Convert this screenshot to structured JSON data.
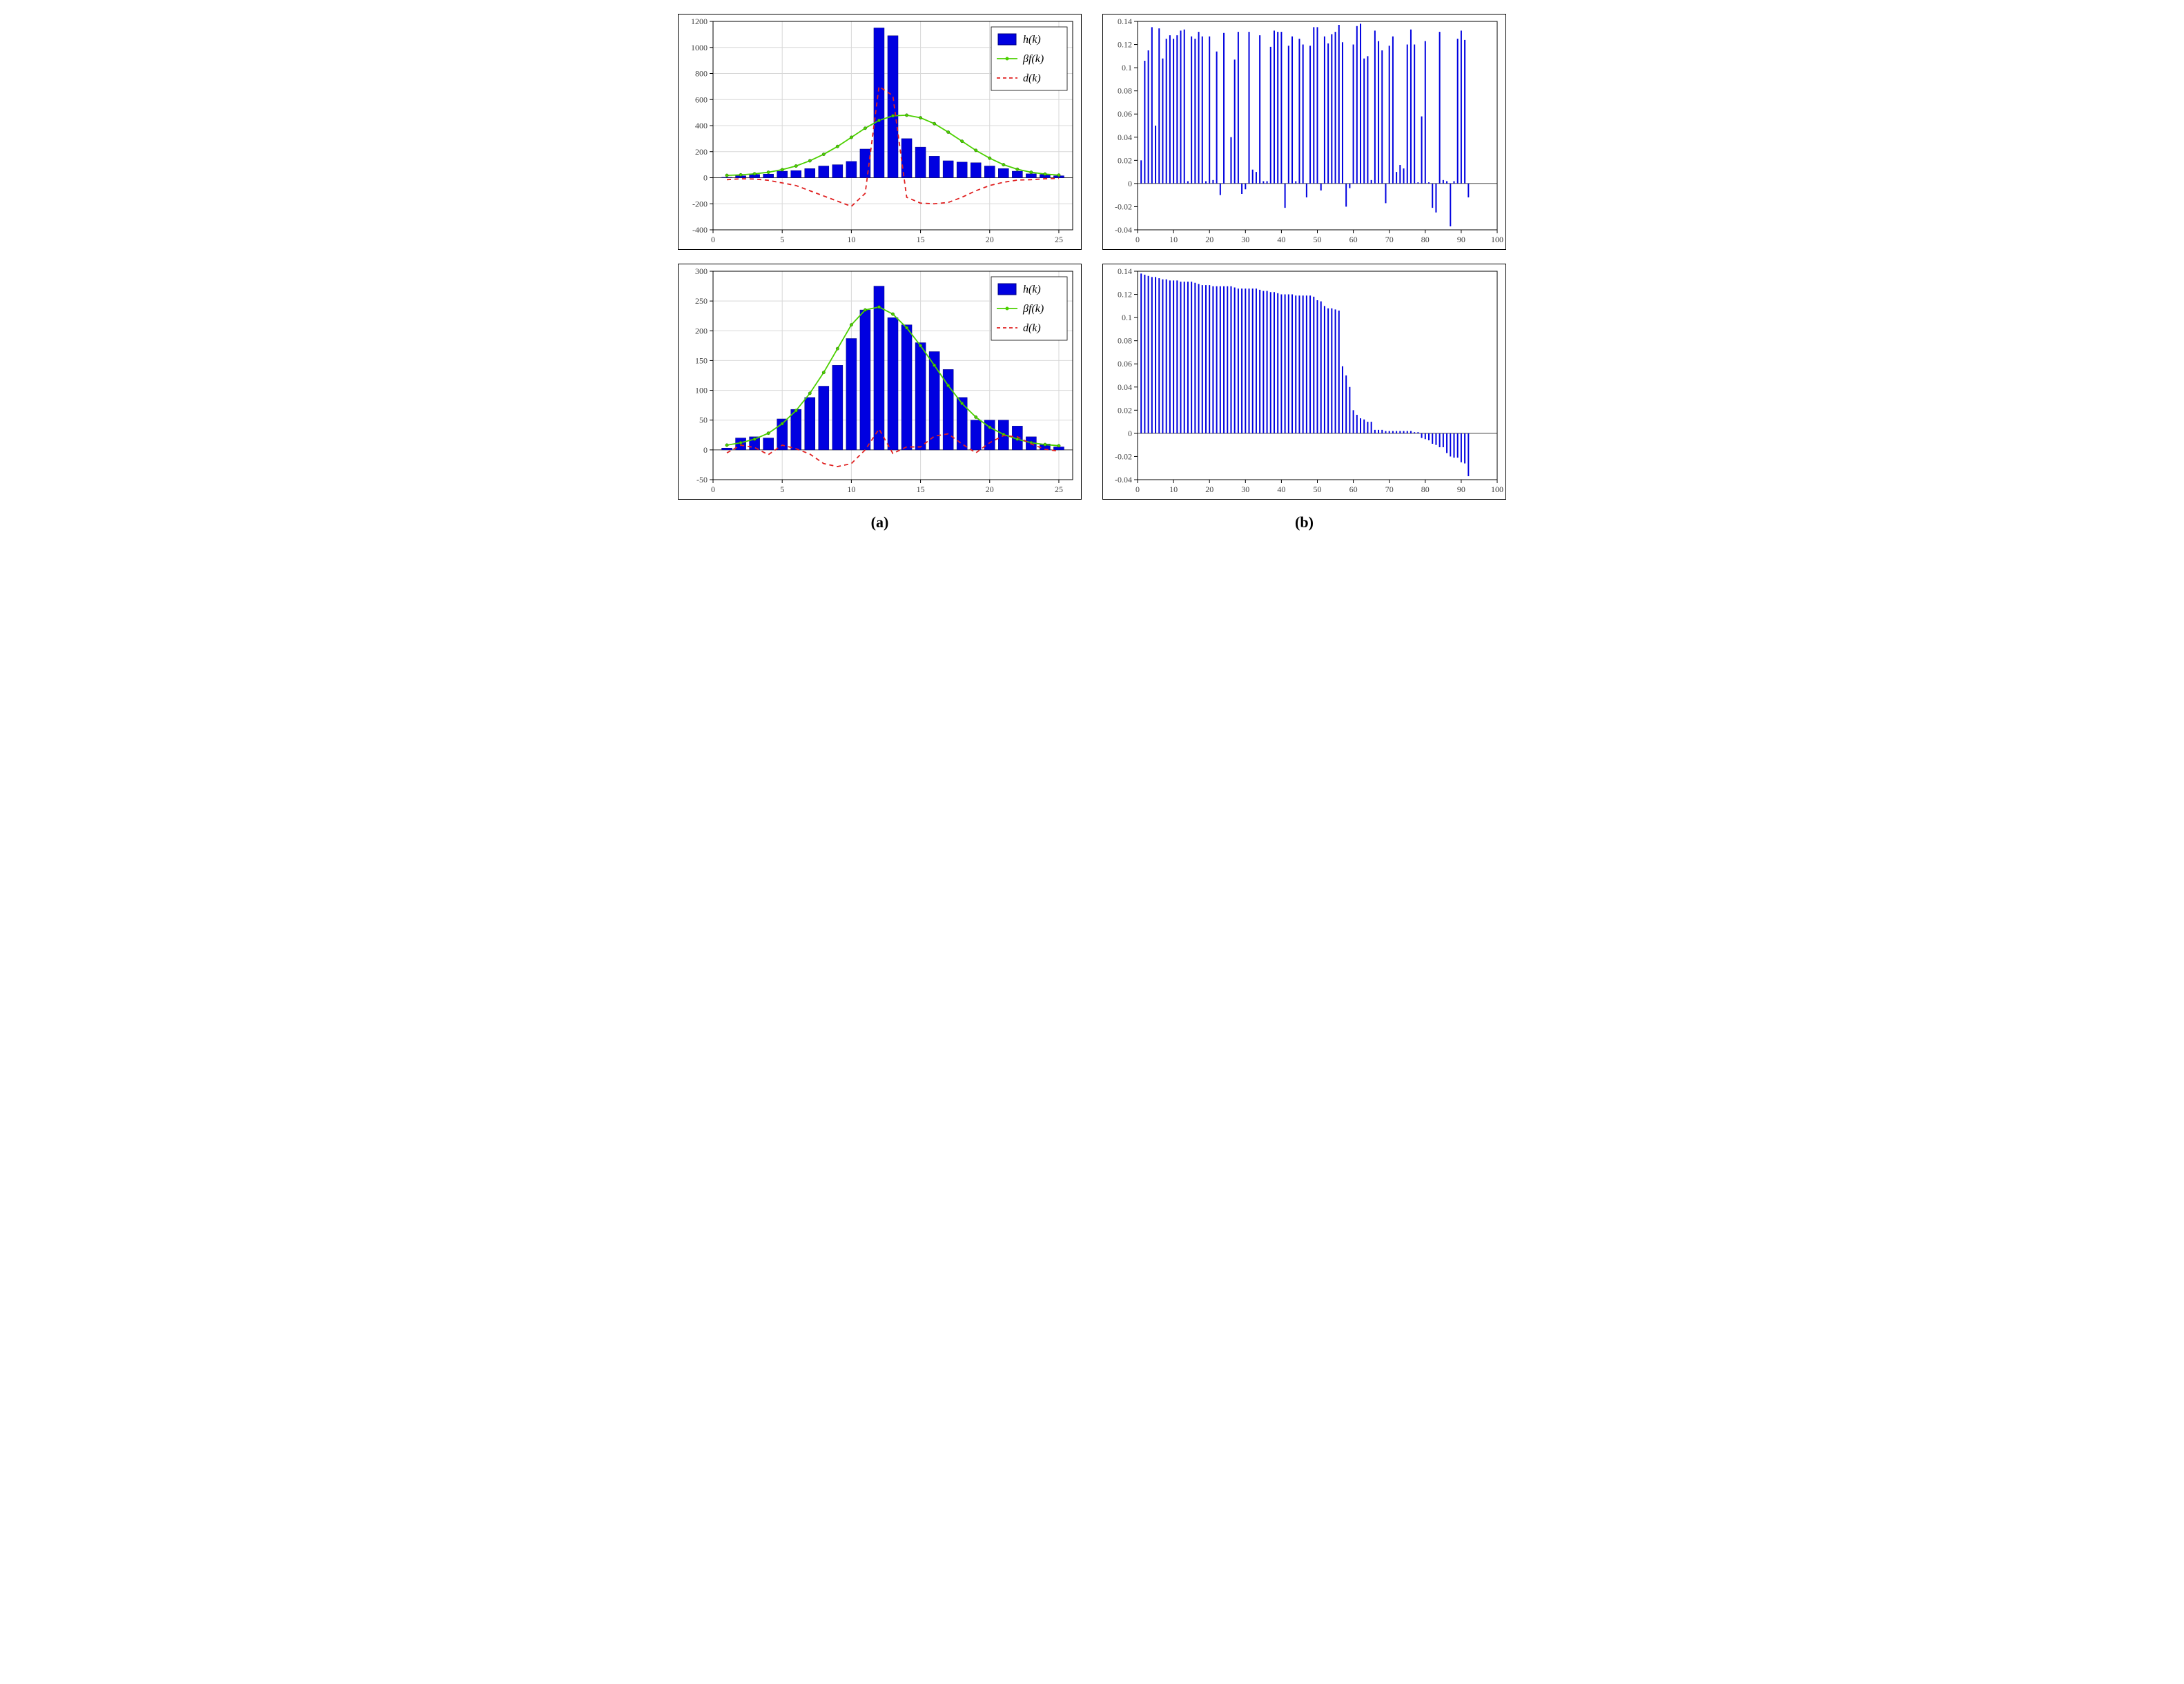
{
  "captions": {
    "a": "(a)",
    "b": "(b)"
  },
  "colors": {
    "bar_fill": "#0000e0",
    "bar_edge": "#000080",
    "line_green": "#4cd000",
    "line_red": "#e02020",
    "grid": "#d8d8d8",
    "axis": "#000000",
    "bg": "#ffffff",
    "tick_text": "#404040"
  },
  "fonts": {
    "tick_size": 12,
    "legend_size": 16,
    "legend_family": "Book Antiqua, Palatino, serif",
    "caption_size": 22
  },
  "panel_a_top": {
    "type": "bar+line",
    "xlim": [
      0,
      26
    ],
    "xticks": [
      0,
      5,
      10,
      15,
      20,
      25
    ],
    "ylim": [
      -400,
      1200
    ],
    "yticks": [
      -400,
      -200,
      0,
      200,
      400,
      600,
      800,
      1000,
      1200
    ],
    "bar_width": 0.75,
    "h": [
      3,
      15,
      25,
      28,
      50,
      55,
      70,
      90,
      100,
      125,
      220,
      1150,
      1090,
      300,
      235,
      165,
      130,
      120,
      115,
      90,
      70,
      50,
      30,
      25,
      15
    ],
    "bf_curve": [
      18,
      22,
      30,
      42,
      62,
      90,
      130,
      180,
      240,
      310,
      380,
      440,
      475,
      480,
      460,
      415,
      350,
      280,
      210,
      150,
      100,
      65,
      42,
      28,
      20
    ],
    "d_curve": [
      -15,
      -8,
      -10,
      -20,
      -40,
      -60,
      -100,
      -140,
      -180,
      -220,
      -120,
      700,
      630,
      -150,
      -195,
      -200,
      -190,
      -150,
      -100,
      -60,
      -35,
      -18,
      -15,
      -8,
      -5
    ],
    "legend": {
      "items": [
        {
          "key": "bar",
          "label": "h(k)"
        },
        {
          "key": "green",
          "label": "βf(k)"
        },
        {
          "key": "red",
          "label": "d(k)"
        }
      ]
    }
  },
  "panel_a_bot": {
    "type": "bar+line",
    "xlim": [
      0,
      26
    ],
    "xticks": [
      0,
      5,
      10,
      15,
      20,
      25
    ],
    "ylim": [
      -50,
      300
    ],
    "yticks": [
      -50,
      0,
      50,
      100,
      150,
      200,
      250,
      300
    ],
    "bar_width": 0.75,
    "h": [
      3,
      20,
      22,
      20,
      52,
      68,
      88,
      107,
      142,
      187,
      235,
      275,
      222,
      210,
      180,
      165,
      135,
      88,
      50,
      50,
      50,
      40,
      22,
      10,
      5
    ],
    "bf_curve": [
      8,
      12,
      18,
      28,
      44,
      66,
      95,
      130,
      170,
      210,
      235,
      240,
      228,
      205,
      175,
      142,
      108,
      78,
      55,
      38,
      26,
      18,
      12,
      9,
      7
    ],
    "d_curve": [
      -5,
      8,
      4,
      -8,
      8,
      2,
      -7,
      -23,
      -28,
      -23,
      0,
      35,
      -6,
      5,
      5,
      23,
      27,
      10,
      -5,
      12,
      24,
      22,
      10,
      1,
      -2
    ],
    "legend": {
      "items": [
        {
          "key": "bar",
          "label": "h(k)"
        },
        {
          "key": "green",
          "label": "βf(k)"
        },
        {
          "key": "red",
          "label": "d(k)"
        }
      ]
    }
  },
  "panel_b_top": {
    "type": "stem",
    "xlim": [
      0,
      100
    ],
    "xticks": [
      0,
      10,
      20,
      30,
      40,
      50,
      60,
      70,
      80,
      90,
      100
    ],
    "ylim": [
      -0.04,
      0.14
    ],
    "yticks": [
      -0.04,
      -0.02,
      0,
      0.02,
      0.04,
      0.06,
      0.08,
      0.1,
      0.12,
      0.14
    ],
    "x": [
      1,
      2,
      3,
      4,
      5,
      6,
      7,
      8,
      9,
      10,
      11,
      12,
      13,
      14,
      15,
      16,
      17,
      18,
      19,
      20,
      21,
      22,
      23,
      24,
      26,
      27,
      28,
      29,
      30,
      31,
      32,
      33,
      34,
      35,
      36,
      37,
      38,
      39,
      40,
      41,
      42,
      43,
      44,
      45,
      46,
      47,
      48,
      49,
      50,
      51,
      52,
      53,
      54,
      55,
      56,
      57,
      58,
      59,
      60,
      61,
      62,
      63,
      64,
      65,
      66,
      67,
      68,
      69,
      70,
      71,
      72,
      73,
      74,
      75,
      76,
      77,
      78,
      79,
      80,
      81,
      82,
      83,
      84,
      85,
      86,
      87,
      88,
      89,
      90,
      91,
      92
    ],
    "y": [
      0.02,
      0.106,
      0.115,
      0.135,
      0.05,
      0.134,
      0.108,
      0.125,
      0.128,
      0.125,
      0.128,
      0.132,
      0.133,
      0.002,
      0.127,
      0.125,
      0.131,
      0.127,
      0.002,
      0.127,
      0.003,
      0.114,
      -0.01,
      0.13,
      0.04,
      0.107,
      0.131,
      -0.009,
      -0.005,
      0.131,
      0.012,
      0.01,
      0.128,
      0.002,
      0.002,
      0.118,
      0.132,
      0.131,
      0.131,
      -0.021,
      0.119,
      0.127,
      0.002,
      0.125,
      0.12,
      -0.012,
      0.119,
      0.135,
      0.135,
      -0.006,
      0.127,
      0.121,
      0.129,
      0.131,
      0.137,
      0.122,
      -0.02,
      -0.004,
      0.12,
      0.136,
      0.138,
      0.108,
      0.11,
      0.003,
      0.132,
      0.123,
      0.115,
      -0.017,
      0.119,
      0.127,
      0.01,
      0.016,
      0.013,
      0.12,
      0.133,
      0.12,
      0.001,
      0.058,
      0.123,
      0.001,
      -0.021,
      -0.025,
      0.131,
      0.003,
      0.002,
      -0.037,
      0.002,
      0.125,
      0.132,
      0.124,
      -0.012
    ]
  },
  "panel_b_bot": {
    "type": "stem",
    "xlim": [
      0,
      100
    ],
    "xticks": [
      0,
      10,
      20,
      30,
      40,
      50,
      60,
      70,
      80,
      90,
      100
    ],
    "ylim": [
      -0.04,
      0.14
    ],
    "yticks": [
      -0.04,
      -0.02,
      0,
      0.02,
      0.04,
      0.06,
      0.08,
      0.1,
      0.12,
      0.14
    ],
    "x": [
      1,
      2,
      3,
      4,
      5,
      6,
      7,
      8,
      9,
      10,
      11,
      12,
      13,
      14,
      15,
      16,
      17,
      18,
      19,
      20,
      21,
      22,
      23,
      24,
      25,
      26,
      27,
      28,
      29,
      30,
      31,
      32,
      33,
      34,
      35,
      36,
      37,
      38,
      39,
      40,
      41,
      42,
      43,
      44,
      45,
      46,
      47,
      48,
      49,
      50,
      51,
      52,
      53,
      54,
      55,
      56,
      57,
      58,
      59,
      60,
      61,
      62,
      63,
      64,
      65,
      66,
      67,
      68,
      69,
      70,
      71,
      72,
      73,
      74,
      75,
      76,
      77,
      78,
      79,
      80,
      81,
      82,
      83,
      84,
      85,
      86,
      87,
      88,
      89,
      90,
      91,
      92
    ],
    "y": [
      0.138,
      0.137,
      0.136,
      0.135,
      0.135,
      0.134,
      0.133,
      0.133,
      0.132,
      0.132,
      0.132,
      0.131,
      0.131,
      0.131,
      0.131,
      0.13,
      0.129,
      0.128,
      0.128,
      0.128,
      0.127,
      0.127,
      0.127,
      0.127,
      0.127,
      0.127,
      0.126,
      0.125,
      0.125,
      0.125,
      0.125,
      0.125,
      0.125,
      0.124,
      0.123,
      0.123,
      0.122,
      0.122,
      0.121,
      0.12,
      0.12,
      0.12,
      0.12,
      0.119,
      0.119,
      0.119,
      0.119,
      0.119,
      0.118,
      0.115,
      0.114,
      0.11,
      0.108,
      0.108,
      0.107,
      0.106,
      0.058,
      0.05,
      0.04,
      0.02,
      0.016,
      0.013,
      0.012,
      0.01,
      0.01,
      0.003,
      0.003,
      0.003,
      0.002,
      0.002,
      0.002,
      0.002,
      0.002,
      0.002,
      0.002,
      0.002,
      0.001,
      0.001,
      -0.004,
      -0.005,
      -0.006,
      -0.009,
      -0.01,
      -0.012,
      -0.012,
      -0.017,
      -0.02,
      -0.021,
      -0.021,
      -0.025,
      -0.026,
      -0.037
    ]
  }
}
